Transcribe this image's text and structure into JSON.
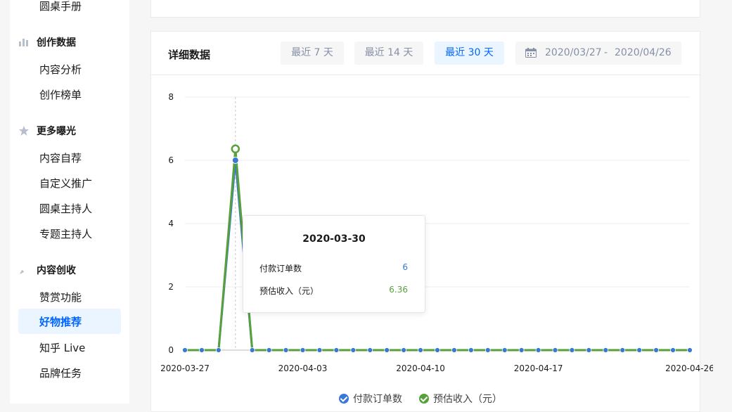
{
  "sidebar": {
    "top_item": "圆桌手册",
    "sections": [
      {
        "title": "创作数据",
        "icon": "bar-chart-icon",
        "items": [
          "内容分析",
          "创作榜单"
        ]
      },
      {
        "title": "更多曝光",
        "icon": "star-icon",
        "items": [
          "内容自荐",
          "自定义推广",
          "圆桌主持人",
          "专题主持人"
        ]
      },
      {
        "title": "内容创收",
        "icon": "rocket-icon",
        "items": [
          "赞赏功能",
          "好物推荐",
          "知乎 Live",
          "品牌任务"
        ]
      }
    ],
    "active_item": "好物推荐"
  },
  "panel": {
    "title": "详细数据",
    "ranges": [
      "最近 7 天",
      "最近 14 天",
      "最近 30 天"
    ],
    "active_range": "最近 30 天",
    "date_start": "2020/03/27",
    "date_sep": "-",
    "date_end": "2020/04/26"
  },
  "tooltip": {
    "date": "2020-03-30",
    "rows": [
      {
        "label": "付款订单数",
        "value": "6",
        "color": "#3a78d6"
      },
      {
        "label": "预估收入（元）",
        "value": "6.36",
        "color": "#58a03a"
      }
    ]
  },
  "chart_data": {
    "type": "line",
    "x": [
      "2020-03-27",
      "2020-03-28",
      "2020-03-29",
      "2020-03-30",
      "2020-03-31",
      "2020-04-01",
      "2020-04-02",
      "2020-04-03",
      "2020-04-04",
      "2020-04-05",
      "2020-04-06",
      "2020-04-07",
      "2020-04-08",
      "2020-04-09",
      "2020-04-10",
      "2020-04-11",
      "2020-04-12",
      "2020-04-13",
      "2020-04-14",
      "2020-04-15",
      "2020-04-16",
      "2020-04-17",
      "2020-04-18",
      "2020-04-19",
      "2020-04-20",
      "2020-04-21",
      "2020-04-22",
      "2020-04-23",
      "2020-04-24",
      "2020-04-25",
      "2020-04-26"
    ],
    "x_tick_labels": [
      "2020-03-27",
      "2020-04-03",
      "2020-04-10",
      "2020-04-17",
      "2020-04-26"
    ],
    "y_ticks": [
      "0",
      "2",
      "4",
      "6",
      "8"
    ],
    "ylim": [
      0,
      8
    ],
    "highlight": "2020-03-30",
    "series": [
      {
        "name": "付款订单数",
        "color": "#3a78d6",
        "values": [
          0,
          0,
          0,
          6,
          0,
          0,
          0,
          0,
          0,
          0,
          0,
          0,
          0,
          0,
          0,
          0,
          0,
          0,
          0,
          0,
          0,
          0,
          0,
          0,
          0,
          0,
          0,
          0,
          0,
          0,
          0
        ]
      },
      {
        "name": "预估收入（元）",
        "color": "#58a03a",
        "values": [
          0,
          0,
          0,
          6.36,
          0,
          0,
          0,
          0,
          0,
          0,
          0,
          0,
          0,
          0,
          0,
          0,
          0,
          0,
          0,
          0,
          0,
          0,
          0,
          0,
          0,
          0,
          0,
          0,
          0,
          0,
          0
        ]
      }
    ],
    "legend_position": "bottom"
  }
}
